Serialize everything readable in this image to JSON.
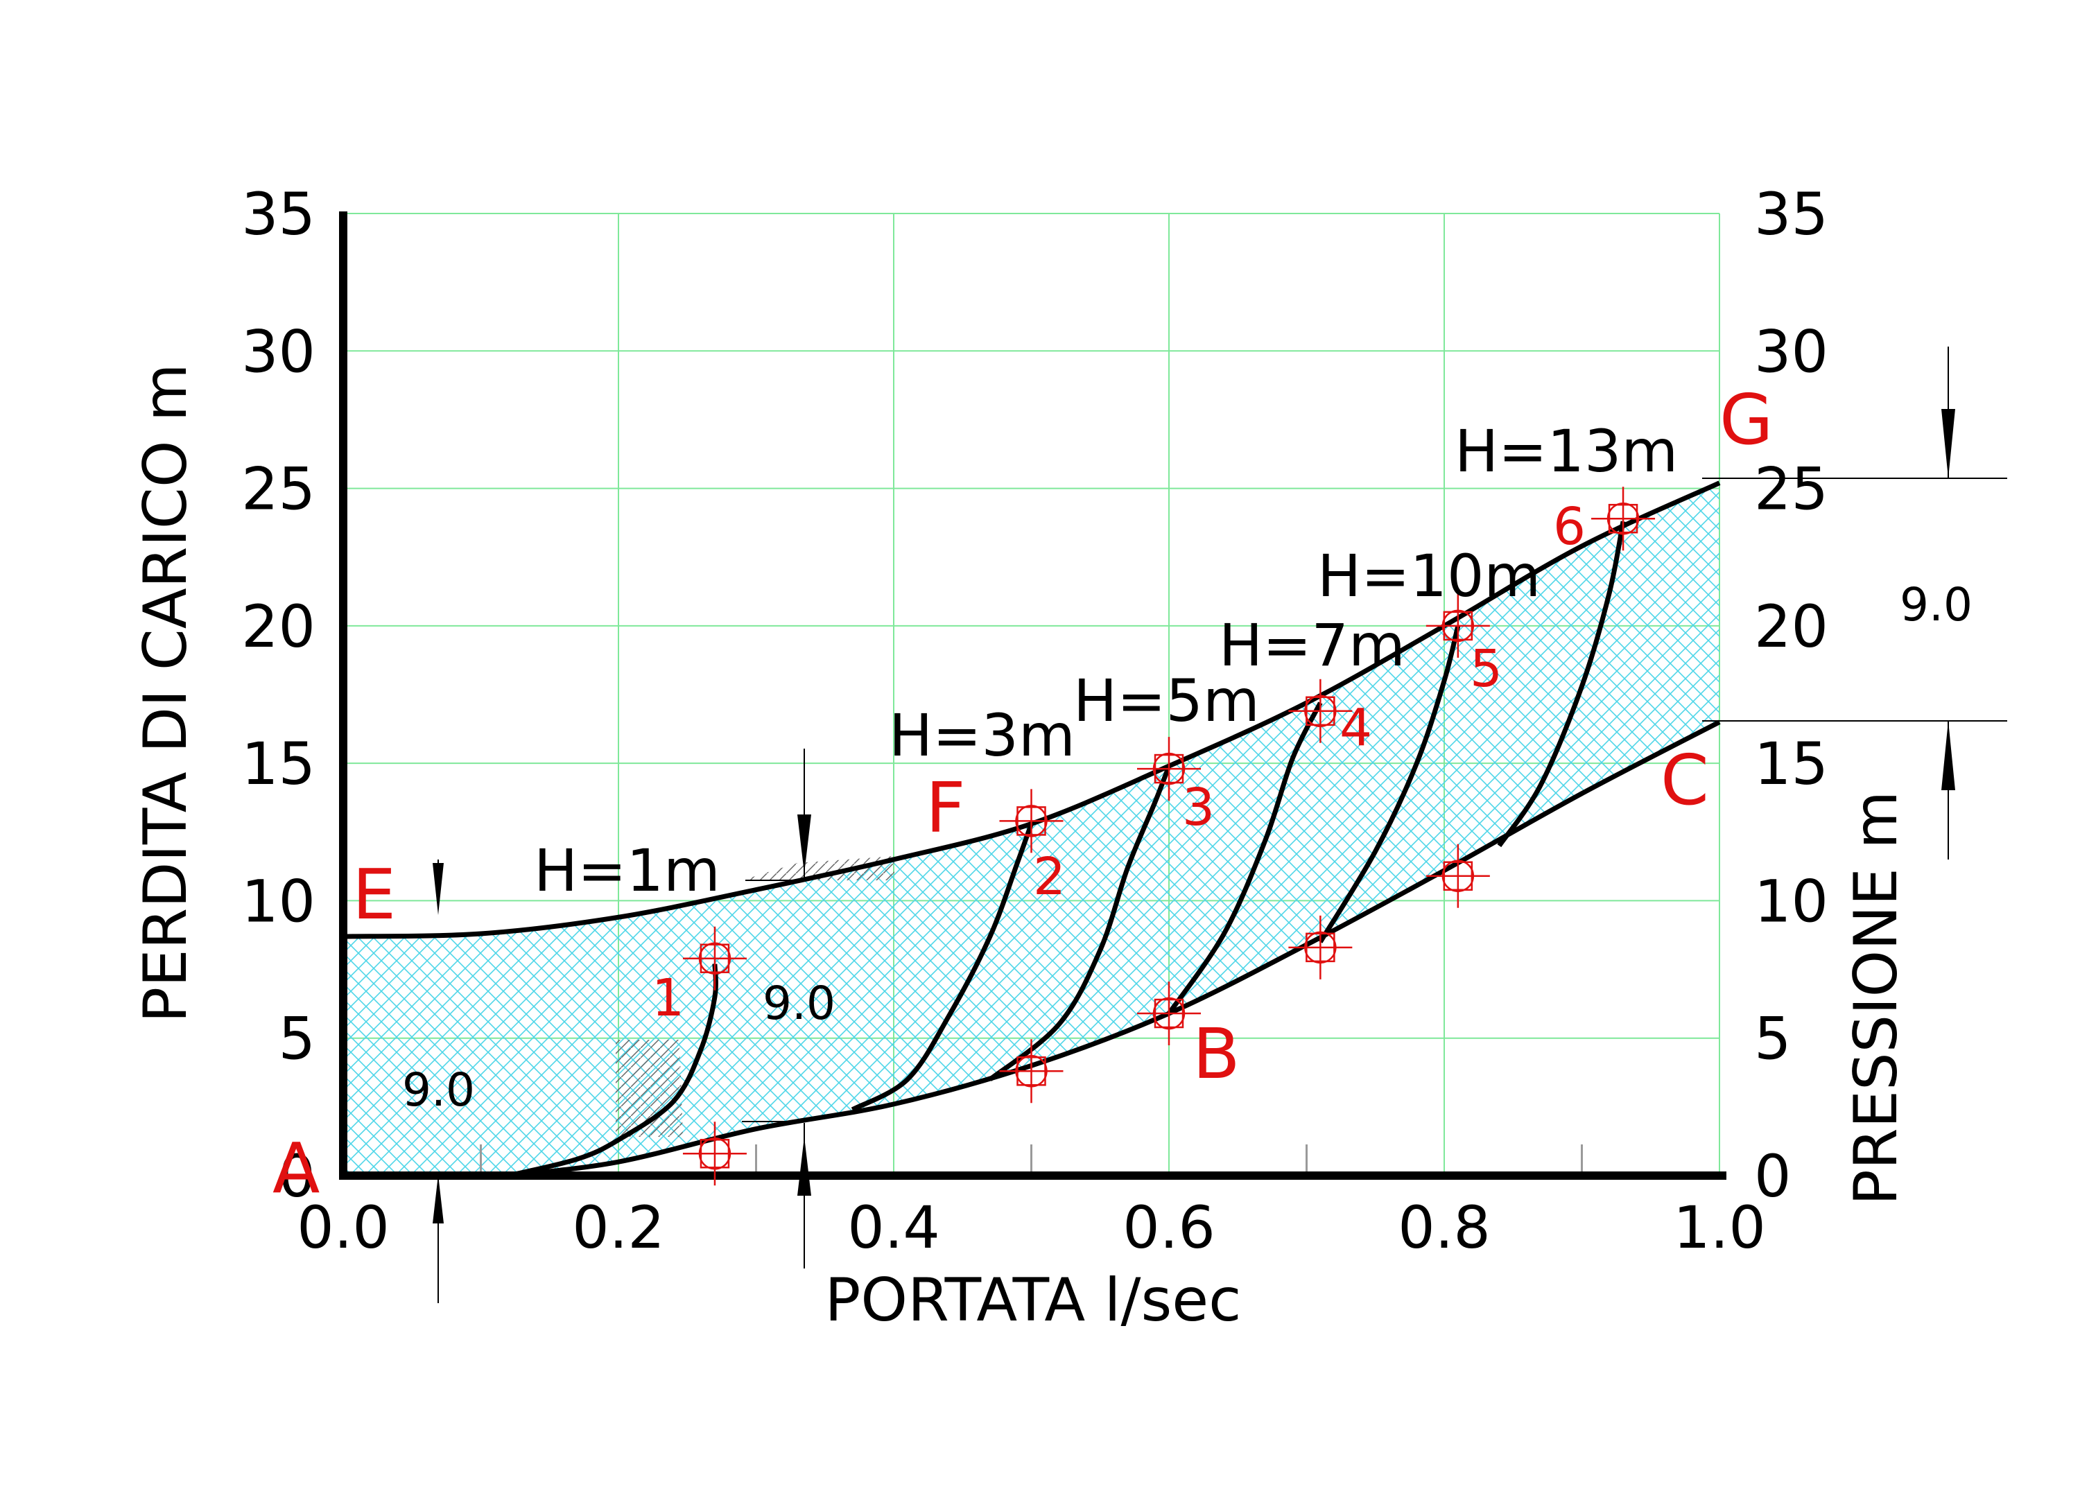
{
  "chart_data": {
    "type": "line",
    "xlabel": "PORTATA  l/sec",
    "ylabel_left": "PERDITA DI CARICO   m",
    "ylabel_right": "PRESSIONE   m",
    "xlim": [
      0,
      1
    ],
    "ylim": [
      0,
      35
    ],
    "x_ticks": [
      "0.0",
      "0.2",
      "0.4",
      "0.6",
      "0.8",
      "1.0"
    ],
    "y_ticks": [
      "0",
      "5",
      "10",
      "15",
      "20",
      "25",
      "30",
      "35"
    ],
    "grid": true,
    "boundary_curves": [
      {
        "name": "EFG",
        "points": [
          [
            0.0,
            8.7
          ],
          [
            0.1,
            8.8
          ],
          [
            0.2,
            9.4
          ],
          [
            0.3,
            10.4
          ],
          [
            0.4,
            11.5
          ],
          [
            0.5,
            12.8
          ],
          [
            0.6,
            14.9
          ],
          [
            0.7,
            17.2
          ],
          [
            0.8,
            20.0
          ],
          [
            0.9,
            22.9
          ],
          [
            1.0,
            25.2
          ]
        ]
      },
      {
        "name": "ABC",
        "points": [
          [
            0.12,
            0.0
          ],
          [
            0.2,
            0.5
          ],
          [
            0.3,
            1.7
          ],
          [
            0.4,
            2.6
          ],
          [
            0.5,
            4.0
          ],
          [
            0.6,
            5.9
          ],
          [
            0.7,
            8.4
          ],
          [
            0.8,
            11.1
          ],
          [
            0.9,
            13.9
          ],
          [
            1.0,
            16.5
          ]
        ]
      }
    ],
    "pressure_curves": [
      {
        "label": "H=1m",
        "points": [
          [
            0.12,
            0.0
          ],
          [
            0.17,
            0.6
          ],
          [
            0.2,
            1.3
          ],
          [
            0.24,
            2.7
          ],
          [
            0.26,
            4.6
          ],
          [
            0.27,
            6.5
          ],
          [
            0.27,
            7.7
          ]
        ]
      },
      {
        "label": "H=3m",
        "points": [
          [
            0.37,
            2.4
          ],
          [
            0.41,
            3.5
          ],
          [
            0.44,
            5.8
          ],
          [
            0.47,
            8.7
          ],
          [
            0.49,
            11.4
          ],
          [
            0.5,
            12.8
          ]
        ]
      },
      {
        "label": "H=5m",
        "points": [
          [
            0.47,
            3.5
          ],
          [
            0.52,
            5.5
          ],
          [
            0.55,
            8.2
          ],
          [
            0.57,
            11.2
          ],
          [
            0.59,
            13.6
          ],
          [
            0.6,
            14.9
          ]
        ]
      },
      {
        "label": "H=7m",
        "points": [
          [
            0.6,
            5.9
          ],
          [
            0.64,
            8.8
          ],
          [
            0.67,
            12.2
          ],
          [
            0.69,
            15.2
          ],
          [
            0.71,
            17.2
          ]
        ]
      },
      {
        "label": "H=10m",
        "points": [
          [
            0.71,
            8.5
          ],
          [
            0.75,
            11.8
          ],
          [
            0.78,
            15.0
          ],
          [
            0.8,
            18.0
          ],
          [
            0.81,
            20.0
          ]
        ]
      },
      {
        "label": "H=13m",
        "points": [
          [
            0.84,
            12.0
          ],
          [
            0.87,
            14.2
          ],
          [
            0.9,
            17.8
          ],
          [
            0.92,
            21.2
          ],
          [
            0.93,
            23.8
          ]
        ]
      }
    ],
    "markers": [
      {
        "label": "1",
        "x": 0.27,
        "y": 7.9
      },
      {
        "label": "",
        "x": 0.27,
        "y": 0.8
      },
      {
        "label": "2",
        "x": 0.5,
        "y": 12.9
      },
      {
        "label": "",
        "x": 0.5,
        "y": 3.8
      },
      {
        "label": "3",
        "x": 0.6,
        "y": 14.8
      },
      {
        "label": "",
        "x": 0.6,
        "y": 5.9
      },
      {
        "label": "4",
        "x": 0.71,
        "y": 16.9
      },
      {
        "label": "",
        "x": 0.71,
        "y": 8.3
      },
      {
        "label": "5",
        "x": 0.81,
        "y": 20.0
      },
      {
        "label": "",
        "x": 0.81,
        "y": 10.9
      },
      {
        "label": "6",
        "x": 0.93,
        "y": 23.9
      }
    ],
    "point_letters": [
      "A",
      "B",
      "C",
      "E",
      "F",
      "G"
    ],
    "dimension_values": [
      "9.0",
      "9.0",
      "9.0"
    ],
    "colors": {
      "curves": "#000000",
      "hatch": "#4fd6e8",
      "grid": "#7fe89a",
      "markers": "#e01010"
    }
  }
}
